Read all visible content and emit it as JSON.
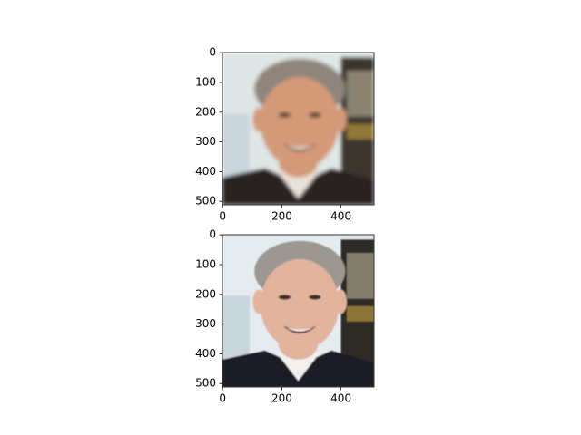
{
  "chart_data": [
    {
      "type": "image",
      "xlim": [
        -0.5,
        511.5
      ],
      "ylim": [
        511.5,
        -0.5
      ],
      "xticks": [
        0,
        200,
        400
      ],
      "yticks": [
        0,
        100,
        200,
        300,
        400,
        500
      ]
    },
    {
      "type": "image",
      "xlim": [
        -0.5,
        511.5
      ],
      "ylim": [
        511.5,
        -0.5
      ],
      "xticks": [
        0,
        200,
        400
      ],
      "yticks": [
        0,
        100,
        200,
        300,
        400,
        500
      ]
    }
  ]
}
